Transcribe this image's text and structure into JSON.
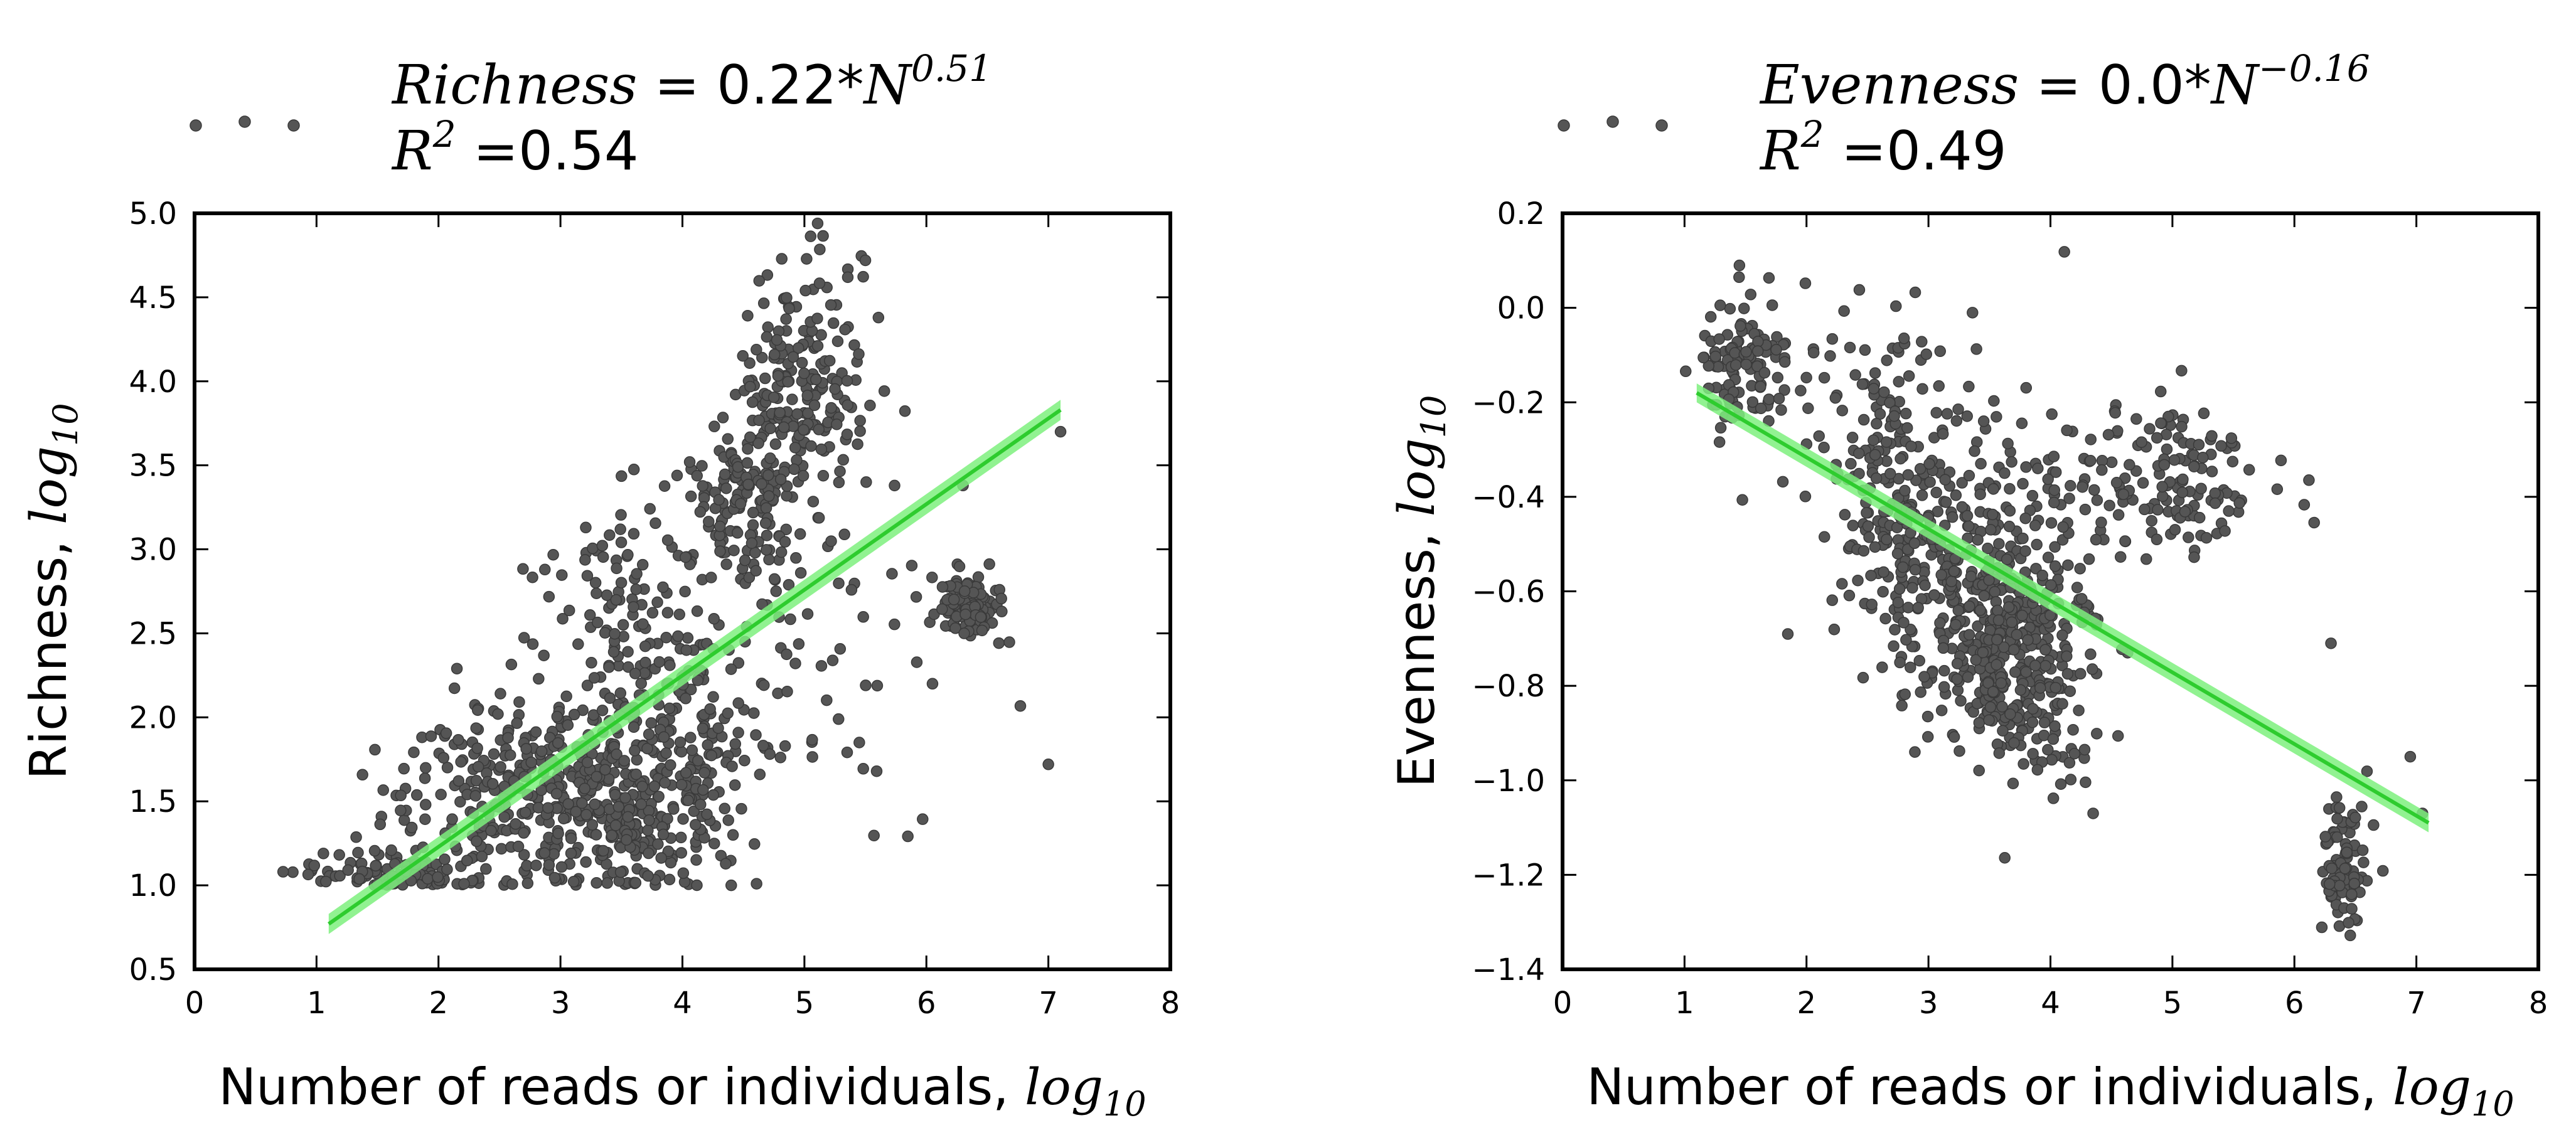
{
  "chart_data": [
    {
      "type": "scatter",
      "xlabel": "Number of reads or individuals,",
      "xlabel_math": "log",
      "xlabel_sub": "10",
      "ylabel": "Richness,",
      "ylabel_math": "log",
      "ylabel_sub": "10",
      "xlim": [
        0,
        8
      ],
      "ylim": [
        0.5,
        5.0
      ],
      "xticks": [
        0,
        1,
        2,
        3,
        4,
        5,
        6,
        7,
        8
      ],
      "xtick_labels": [
        "0",
        "1",
        "2",
        "3",
        "4",
        "5",
        "6",
        "7",
        "8"
      ],
      "yticks": [
        0.5,
        1.0,
        1.5,
        2.0,
        2.5,
        3.0,
        3.5,
        4.0,
        4.5,
        5.0
      ],
      "ytick_labels": [
        "0.5",
        "1.0",
        "1.5",
        "2.0",
        "2.5",
        "3.0",
        "3.5",
        "4.0",
        "4.5",
        "5.0"
      ],
      "legend": {
        "placement": "above-left",
        "line1_var": "Richness",
        "line1_eq": " = 0.22*",
        "line1_base": "N",
        "line1_exp": "0.51",
        "line2_var": "R",
        "line2_exp": "2",
        "line2_eq": " =0.54"
      },
      "fit": {
        "x": [
          1.1,
          7.1
        ],
        "y": [
          0.77,
          3.83
        ],
        "band": 0.06
      },
      "grid": false,
      "point_color": "#555555",
      "fit_color": "#2ecc2e",
      "band_color": "#7ef07e",
      "clusters": [
        {
          "cx": 1.6,
          "cy": 1.07,
          "sx": 0.35,
          "sy": 0.06,
          "n": 110,
          "ymin": 1.0
        },
        {
          "cx": 2.7,
          "cy": 1.55,
          "sx": 0.5,
          "sy": 0.3,
          "n": 280,
          "ymin": 1.0
        },
        {
          "cx": 3.6,
          "cy": 1.5,
          "sx": 0.4,
          "sy": 0.3,
          "n": 300,
          "ymin": 1.0
        },
        {
          "cx": 4.1,
          "cy": 2.1,
          "sx": 0.4,
          "sy": 0.35,
          "n": 120
        },
        {
          "cx": 3.5,
          "cy": 2.6,
          "sx": 0.35,
          "sy": 0.35,
          "n": 90
        },
        {
          "cx": 4.5,
          "cy": 3.3,
          "sx": 0.25,
          "sy": 0.3,
          "n": 160
        },
        {
          "cx": 5.0,
          "cy": 3.95,
          "sx": 0.25,
          "sy": 0.35,
          "n": 200
        },
        {
          "cx": 6.35,
          "cy": 2.65,
          "sx": 0.12,
          "sy": 0.1,
          "n": 130
        },
        {
          "cx": 5.3,
          "cy": 2.4,
          "sx": 0.5,
          "sy": 0.5,
          "n": 30
        }
      ],
      "outliers": [
        [
          7.0,
          1.72
        ],
        [
          7.1,
          3.7
        ],
        [
          6.3,
          3.38
        ],
        [
          4.4,
          1.0
        ],
        [
          6.05,
          2.2
        ],
        [
          5.5,
          4.72
        ],
        [
          5.45,
          1.85
        ]
      ]
    },
    {
      "type": "scatter",
      "xlabel": "Number of reads or individuals,",
      "xlabel_math": "log",
      "xlabel_sub": "10",
      "ylabel": "Evenness,",
      "ylabel_math": "log",
      "ylabel_sub": "10",
      "xlim": [
        0,
        8
      ],
      "ylim": [
        -1.4,
        0.2
      ],
      "xticks": [
        0,
        1,
        2,
        3,
        4,
        5,
        6,
        7,
        8
      ],
      "xtick_labels": [
        "0",
        "1",
        "2",
        "3",
        "4",
        "5",
        "6",
        "7",
        "8"
      ],
      "yticks": [
        -1.4,
        -1.2,
        -1.0,
        -0.8,
        -0.6,
        -0.4,
        -0.2,
        0.0,
        0.2
      ],
      "ytick_labels": [
        "−1.4",
        "−1.2",
        "−1.0",
        "−0.8",
        "−0.6",
        "−0.4",
        "−0.2",
        "0.0",
        "0.2"
      ],
      "legend": {
        "placement": "above-left",
        "line1_var": "Evenness",
        "line1_eq": " = 0.0*",
        "line1_base": "N",
        "line1_exp": "−0.16",
        "line2_var": "R",
        "line2_exp": "2",
        "line2_eq": " =0.49"
      },
      "fit": {
        "x": [
          1.1,
          7.1
        ],
        "y": [
          -0.18,
          -1.09
        ],
        "band": 0.02
      },
      "grid": false,
      "point_color": "#555555",
      "fit_color": "#2ecc2e",
      "band_color": "#7ef07e",
      "clusters": [
        {
          "cx": 1.45,
          "cy": -0.12,
          "sx": 0.2,
          "sy": 0.08,
          "n": 110
        },
        {
          "cx": 2.6,
          "cy": -0.25,
          "sx": 0.2,
          "sy": 0.15,
          "n": 90
        },
        {
          "cx": 3.2,
          "cy": -0.55,
          "sx": 0.5,
          "sy": 0.15,
          "n": 300
        },
        {
          "cx": 3.7,
          "cy": -0.75,
          "sx": 0.35,
          "sy": 0.12,
          "n": 350
        },
        {
          "cx": 4.9,
          "cy": -0.38,
          "sx": 0.5,
          "sy": 0.08,
          "n": 150
        },
        {
          "cx": 6.4,
          "cy": -1.18,
          "sx": 0.1,
          "sy": 0.07,
          "n": 90
        },
        {
          "cx": 3.0,
          "cy": -0.3,
          "sx": 0.6,
          "sy": 0.2,
          "n": 60
        }
      ],
      "outliers": [
        [
          6.3,
          -0.71
        ],
        [
          6.95,
          -0.95
        ],
        [
          7.05,
          -1.07
        ],
        [
          4.35,
          -1.07
        ]
      ]
    }
  ]
}
